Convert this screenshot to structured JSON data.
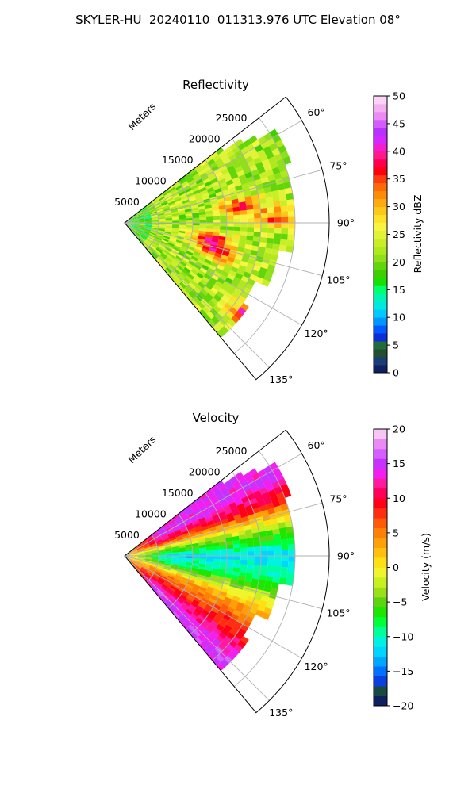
{
  "title": "SKYLER-HU  20240110  011313.976 UTC Elevation 08°",
  "chart_data": [
    {
      "type": "heatmap",
      "subtype": "polar-sector",
      "title": "Reflectivity",
      "radial_label": "Meters",
      "radial_ticks": [
        5000,
        10000,
        15000,
        20000,
        25000
      ],
      "radial_tick_labels": [
        "5000",
        "10000",
        "15000",
        "20000",
        "25000"
      ],
      "rlim": [
        0,
        30000
      ],
      "azimuth_ticks": [
        60,
        75,
        90,
        105,
        120,
        135
      ],
      "azimuth_tick_labels": [
        "60°",
        "75°",
        "90°",
        "105°",
        "120°",
        "135°"
      ],
      "theta_range": [
        52,
        140
      ],
      "grid": true,
      "colorbar": {
        "label": "Reflectivity dBZ",
        "range": [
          0,
          50
        ],
        "ticks": [
          0,
          5,
          10,
          15,
          20,
          25,
          30,
          35,
          40,
          45,
          50
        ],
        "tick_labels": [
          "0",
          "5",
          "10",
          "15",
          "20",
          "25",
          "30",
          "35",
          "40",
          "45",
          "50"
        ]
      },
      "field_summary": {
        "background_dbz": 22,
        "cores_dbz": [
          {
            "azimuth_deg": 82,
            "range_m": 17000,
            "value": 36
          },
          {
            "azimuth_deg": 88,
            "range_m": 22000,
            "value": 33
          },
          {
            "azimuth_deg": 101,
            "range_m": 13000,
            "value": 40
          },
          {
            "azimuth_deg": 108,
            "range_m": 14000,
            "value": 37
          },
          {
            "azimuth_deg": 128,
            "range_m": 23000,
            "value": 42
          }
        ]
      }
    },
    {
      "type": "heatmap",
      "subtype": "polar-sector",
      "title": "Velocity",
      "radial_label": "Meters",
      "radial_ticks": [
        5000,
        10000,
        15000,
        20000,
        25000
      ],
      "radial_tick_labels": [
        "5000",
        "10000",
        "15000",
        "20000",
        "25000"
      ],
      "rlim": [
        0,
        30000
      ],
      "azimuth_ticks": [
        60,
        75,
        90,
        105,
        120,
        135
      ],
      "azimuth_tick_labels": [
        "60°",
        "75°",
        "90°",
        "105°",
        "120°",
        "135°"
      ],
      "theta_range": [
        52,
        140
      ],
      "grid": true,
      "colorbar": {
        "label": "Velocity (m/s)",
        "range": [
          -20,
          20
        ],
        "ticks": [
          -20,
          -15,
          -10,
          -5,
          0,
          5,
          10,
          15,
          20
        ],
        "tick_labels": [
          "−20",
          "−15",
          "−10",
          "−5",
          "0",
          "5",
          "10",
          "15",
          "20"
        ]
      },
      "field_summary": {
        "near_range_m_per_s": 2,
        "bands_m_per_s": [
          {
            "azimuth_deg": 62,
            "value": 14
          },
          {
            "azimuth_deg": 70,
            "value": 9
          },
          {
            "azimuth_deg": 80,
            "value": -4
          },
          {
            "azimuth_deg": 90,
            "value": -12
          },
          {
            "azimuth_deg": 100,
            "value": -8
          },
          {
            "azimuth_deg": 112,
            "value": 3
          },
          {
            "azimuth_deg": 125,
            "value": 9
          },
          {
            "azimuth_deg": 135,
            "value": 15
          }
        ]
      }
    }
  ]
}
